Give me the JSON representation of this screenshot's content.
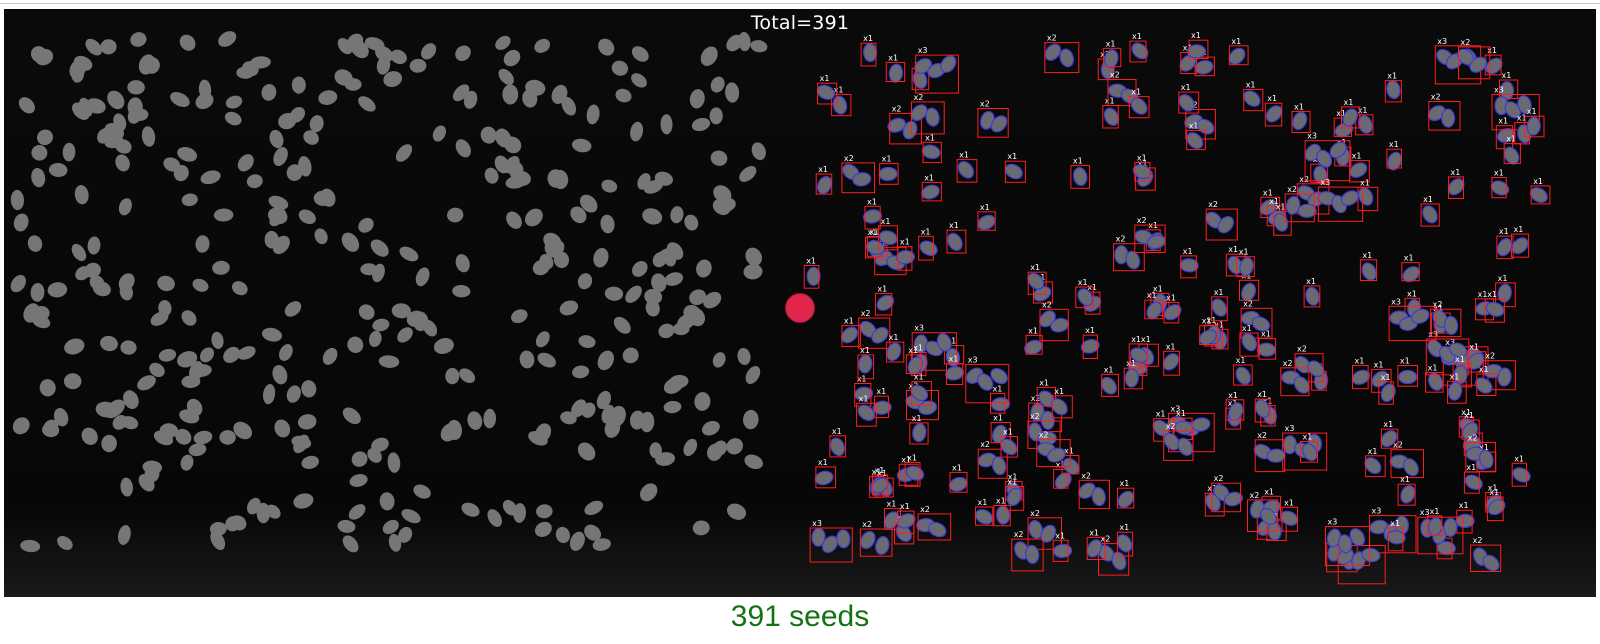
{
  "overlay": {
    "total_label": "Total=391"
  },
  "caption": {
    "count_text": "391 seeds"
  },
  "colors": {
    "seed_fill": "#6a6a72",
    "raw_seed_fill": "#767676",
    "detect_box": "#ff1e1e",
    "contour": "#3b3bd6",
    "handle": "#e0264a",
    "caption_text": "#137313"
  },
  "icons": {
    "divider_handle": "comparison-slider-handle"
  }
}
